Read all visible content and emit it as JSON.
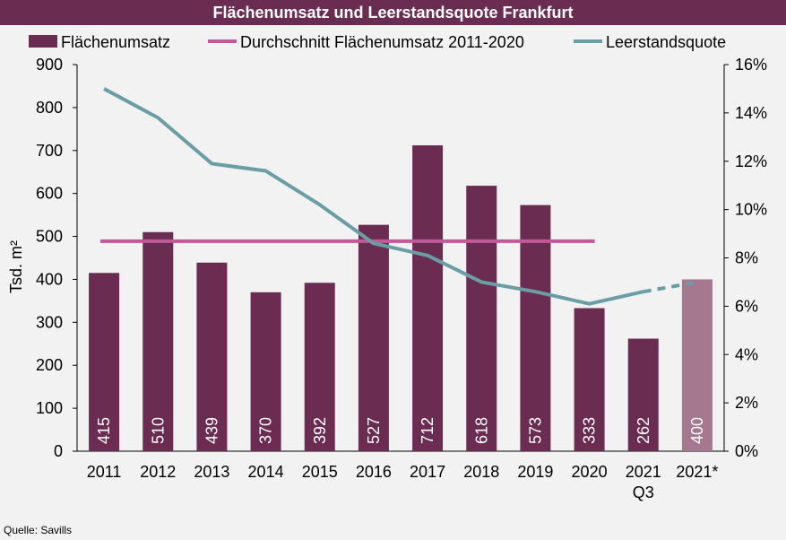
{
  "chart_data": {
    "type": "bar",
    "title": "Flächenumsatz und Leerstandsquote Frankfurt",
    "ylabel": "Tsd. m²",
    "ylim": [
      0,
      900
    ],
    "yticks": [
      "0",
      "100",
      "200",
      "300",
      "400",
      "500",
      "600",
      "700",
      "800",
      "900"
    ],
    "y2lim": [
      0,
      16
    ],
    "y2ticks": [
      "0%",
      "2%",
      "4%",
      "6%",
      "8%",
      "10%",
      "12%",
      "14%",
      "16%"
    ],
    "categories": [
      {
        "line1": "2011",
        "line2": ""
      },
      {
        "line1": "2012",
        "line2": ""
      },
      {
        "line1": "2013",
        "line2": ""
      },
      {
        "line1": "2014",
        "line2": ""
      },
      {
        "line1": "2015",
        "line2": ""
      },
      {
        "line1": "2016",
        "line2": ""
      },
      {
        "line1": "2017",
        "line2": ""
      },
      {
        "line1": "2018",
        "line2": ""
      },
      {
        "line1": "2019",
        "line2": ""
      },
      {
        "line1": "2020",
        "line2": ""
      },
      {
        "line1": "2021",
        "line2": "Q3"
      },
      {
        "line1": "2021*",
        "line2": ""
      }
    ],
    "series": [
      {
        "name": "Flächenumsatz",
        "kind": "bar",
        "color": "#6b2c51",
        "forecast_color": "#a6788f",
        "values": [
          415,
          510,
          439,
          370,
          392,
          527,
          712,
          618,
          573,
          333,
          262,
          400
        ],
        "labels": [
          "415",
          "510",
          "439",
          "370",
          "392",
          "527",
          "712",
          "618",
          "573",
          "333",
          "262",
          "400"
        ]
      },
      {
        "name": "Durchschnitt Flächenumsatz 2011-2020",
        "kind": "line",
        "color": "#c05a98",
        "value": 489,
        "from_index": 0,
        "to_index": 9
      },
      {
        "name": "Leerstandsquote",
        "kind": "line",
        "axis": "right",
        "color": "#6a9ea4",
        "values": [
          15.0,
          13.8,
          11.9,
          11.6,
          10.2,
          8.6,
          8.1,
          7.0,
          6.6,
          6.1,
          6.6,
          7.0
        ]
      }
    ],
    "grid": false,
    "legend": "top"
  },
  "source": "Quelle: Savills"
}
